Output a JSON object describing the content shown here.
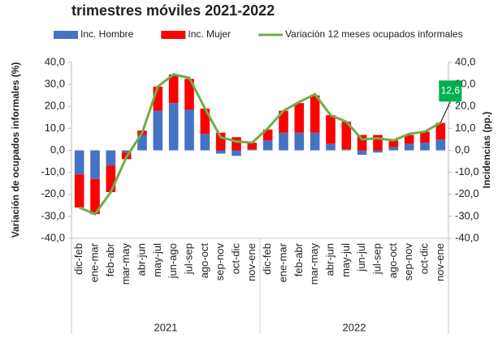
{
  "chart_data": {
    "type": "bar",
    "title": "trimestres móviles 2021-2022",
    "ylabel": "Variación de ocupados informales (%)",
    "y2label": "Incidencias (pp.)",
    "categories": [
      "dic-feb",
      "ene-mar",
      "feb-abr",
      "mar-may",
      "abr-jun",
      "may-jul",
      "jun-ago",
      "jul-sep",
      "ago-oct",
      "sep-nov",
      "oct-dic",
      "nov-ene",
      "dic-feb",
      "ene-mar",
      "feb-abr",
      "mar-may",
      "abr-jun",
      "may-jul",
      "jun-jul",
      "jul-sep",
      "ago-oct",
      "sep-nov",
      "oct-dic",
      "nov-ene"
    ],
    "x_groups": [
      "2021",
      "2022"
    ],
    "stacked": true,
    "series": [
      {
        "name": "Inc. Hombre",
        "type": "bar",
        "axis": "y2",
        "color": "#4472c4",
        "values": [
          -11,
          -13,
          -7,
          -1,
          7,
          18,
          21.5,
          18.5,
          7.5,
          -1.5,
          -2.5,
          0.5,
          4.5,
          8,
          8,
          8,
          3,
          0.5,
          -2,
          -1,
          1.5,
          3,
          3.5,
          5
        ]
      },
      {
        "name": "Inc. Mujer",
        "type": "bar",
        "axis": "y2",
        "color": "#ff0000",
        "values": [
          -15,
          -16,
          -12,
          -3,
          2,
          11,
          13,
          14,
          11.5,
          8,
          6,
          3,
          5,
          10,
          13.5,
          17,
          13,
          12.5,
          7,
          7,
          3,
          4,
          5,
          7.5
        ]
      },
      {
        "name": "Variación 12 meses ocupados informales",
        "type": "line",
        "axis": "y",
        "color": "#70ad47",
        "values": [
          -26,
          -29,
          -19,
          -3,
          8,
          29,
          34.5,
          33,
          19,
          6,
          4,
          3.5,
          10,
          18,
          22,
          25.5,
          16,
          13,
          5,
          5.5,
          4.5,
          7.5,
          8.5,
          12.6
        ],
        "value_labels": [
          null,
          null,
          null,
          null,
          null,
          null,
          null,
          null,
          null,
          null,
          null,
          null,
          null,
          null,
          null,
          null,
          null,
          null,
          null,
          null,
          null,
          null,
          null,
          "12,6"
        ]
      }
    ],
    "ylim": [
      -40,
      40
    ],
    "yticks": [
      {
        "value": -40,
        "label": "-40,0"
      },
      {
        "value": -30,
        "label": "-30,0"
      },
      {
        "value": -20,
        "label": "-20,0"
      },
      {
        "value": -10,
        "label": "-10,0"
      },
      {
        "value": 0,
        "label": "0,0"
      },
      {
        "value": 10,
        "label": "10,0"
      },
      {
        "value": 20,
        "label": "20,0"
      },
      {
        "value": 30,
        "label": "30,0"
      },
      {
        "value": 40,
        "label": "40,0"
      }
    ],
    "y2lim": [
      -40,
      40
    ],
    "y2ticks": [
      {
        "value": -40,
        "label": "-40,0"
      },
      {
        "value": -30,
        "label": "-30,0"
      },
      {
        "value": -20,
        "label": "-20,0"
      },
      {
        "value": -10,
        "label": "-10,0"
      },
      {
        "value": 0,
        "label": "0,0"
      },
      {
        "value": 10,
        "label": "10,0"
      },
      {
        "value": 20,
        "label": "20,0"
      },
      {
        "value": 30,
        "label": "30,0"
      },
      {
        "value": 40,
        "label": "40,0"
      }
    ]
  }
}
